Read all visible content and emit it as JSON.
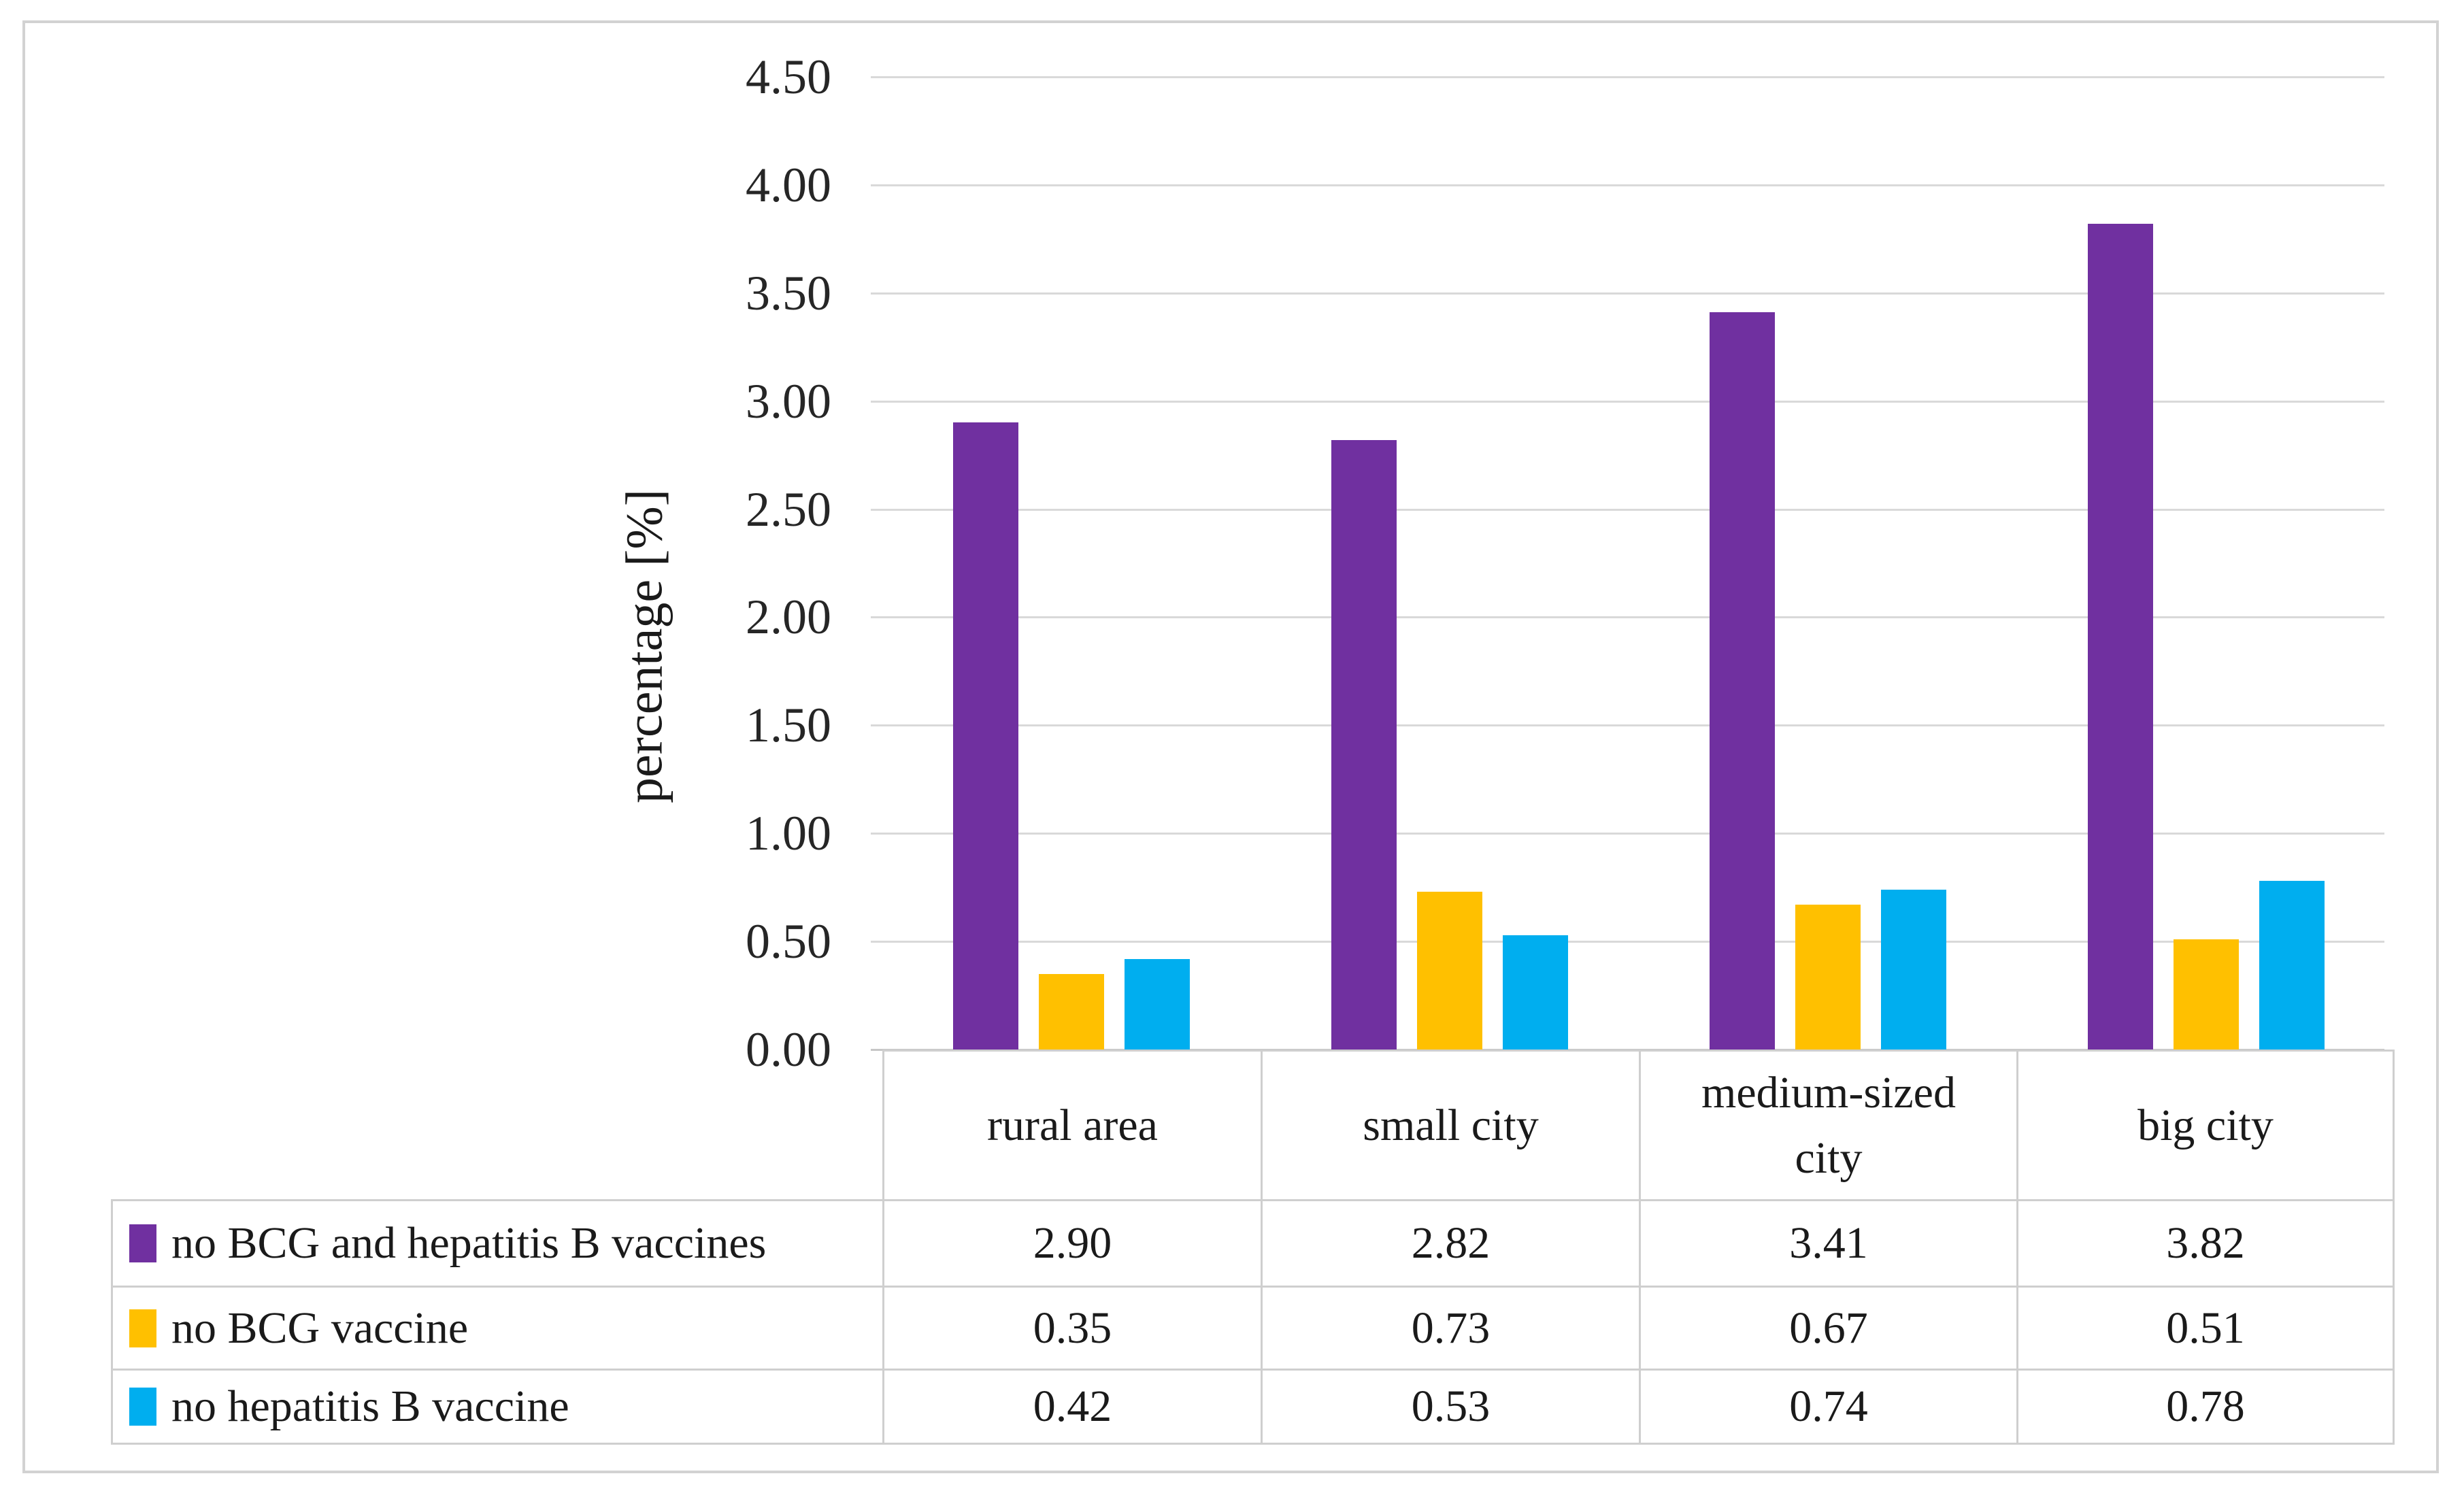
{
  "chart_data": {
    "type": "bar",
    "title": "",
    "ylabel": "percentage [%]",
    "categories": [
      "rural area",
      "small city",
      "medium-sized city",
      "big city"
    ],
    "series": [
      {
        "name": "no BCG and hepatitis B vaccines",
        "color": "#7030A0",
        "values": [
          2.9,
          2.82,
          3.41,
          3.82
        ]
      },
      {
        "name": "no BCG vaccine",
        "color": "#FFC000",
        "values": [
          0.35,
          0.73,
          0.67,
          0.51
        ]
      },
      {
        "name": "no hepatitis B vaccine",
        "color": "#00AEEF",
        "values": [
          0.42,
          0.53,
          0.74,
          0.78
        ]
      }
    ],
    "ylim": [
      0,
      4.5
    ],
    "ytick_step": 0.5,
    "ytick_labels": [
      "0.00",
      "0.50",
      "1.00",
      "1.50",
      "2.00",
      "2.50",
      "3.00",
      "3.50",
      "4.00",
      "4.50"
    ],
    "grid": true,
    "gridline_color": "#d9d9d9",
    "legend_position": "table-rows-left",
    "value_format_decimals": 2
  }
}
